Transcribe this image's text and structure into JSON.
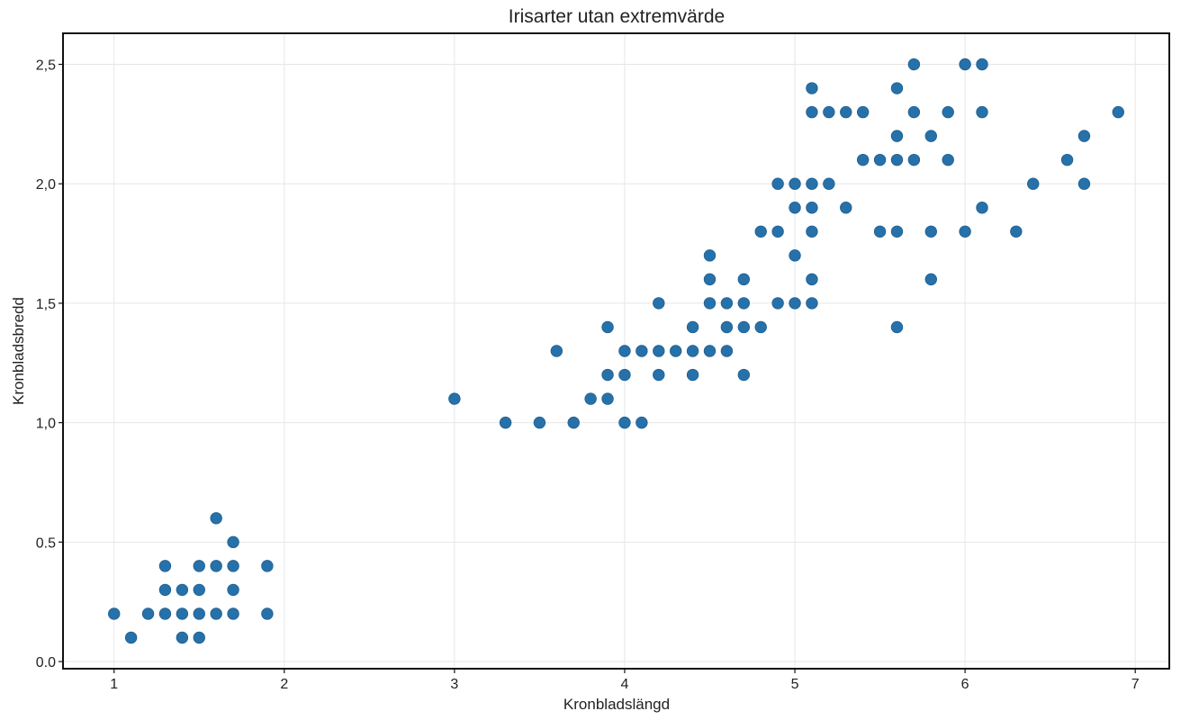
{
  "chart_data": {
    "type": "scatter",
    "title": "Irisarter utan extremvärde",
    "xlabel": "Kronbladslängd",
    "ylabel": "Kronbladsbredd",
    "xlim": [
      0.7,
      7.2
    ],
    "ylim": [
      -0.03,
      2.63
    ],
    "x_ticks": [
      1,
      2,
      3,
      4,
      5,
      6,
      7
    ],
    "x_tick_labels": [
      "1",
      "2",
      "3",
      "4",
      "5",
      "6",
      "7"
    ],
    "y_ticks": [
      0.0,
      0.5,
      1.0,
      1.5,
      2.0,
      2.5
    ],
    "y_tick_labels": [
      "0.0",
      "0.5",
      "1,0",
      "1,5",
      "2,0",
      "2,5"
    ],
    "grid": true,
    "marker_color": "#2771aa",
    "points": [
      [
        1.0,
        0.2
      ],
      [
        1.1,
        0.1
      ],
      [
        1.2,
        0.2
      ],
      [
        1.3,
        0.2
      ],
      [
        1.3,
        0.3
      ],
      [
        1.3,
        0.4
      ],
      [
        1.4,
        0.1
      ],
      [
        1.4,
        0.2
      ],
      [
        1.4,
        0.3
      ],
      [
        1.5,
        0.1
      ],
      [
        1.5,
        0.2
      ],
      [
        1.5,
        0.3
      ],
      [
        1.5,
        0.4
      ],
      [
        1.6,
        0.2
      ],
      [
        1.6,
        0.4
      ],
      [
        1.6,
        0.6
      ],
      [
        1.7,
        0.2
      ],
      [
        1.7,
        0.3
      ],
      [
        1.7,
        0.4
      ],
      [
        1.7,
        0.5
      ],
      [
        1.9,
        0.2
      ],
      [
        1.9,
        0.4
      ],
      [
        3.0,
        1.1
      ],
      [
        3.3,
        1.0
      ],
      [
        3.5,
        1.0
      ],
      [
        3.6,
        1.3
      ],
      [
        3.7,
        1.0
      ],
      [
        3.8,
        1.1
      ],
      [
        3.9,
        1.1
      ],
      [
        3.9,
        1.2
      ],
      [
        3.9,
        1.4
      ],
      [
        4.0,
        1.0
      ],
      [
        4.0,
        1.2
      ],
      [
        4.0,
        1.3
      ],
      [
        4.1,
        1.0
      ],
      [
        4.1,
        1.3
      ],
      [
        4.2,
        1.2
      ],
      [
        4.2,
        1.3
      ],
      [
        4.2,
        1.5
      ],
      [
        4.3,
        1.3
      ],
      [
        4.4,
        1.2
      ],
      [
        4.4,
        1.3
      ],
      [
        4.4,
        1.4
      ],
      [
        4.5,
        1.3
      ],
      [
        4.5,
        1.5
      ],
      [
        4.5,
        1.6
      ],
      [
        4.5,
        1.7
      ],
      [
        4.6,
        1.3
      ],
      [
        4.6,
        1.4
      ],
      [
        4.6,
        1.5
      ],
      [
        4.7,
        1.2
      ],
      [
        4.7,
        1.4
      ],
      [
        4.7,
        1.5
      ],
      [
        4.7,
        1.6
      ],
      [
        4.8,
        1.4
      ],
      [
        4.8,
        1.8
      ],
      [
        4.9,
        1.5
      ],
      [
        4.9,
        1.8
      ],
      [
        4.9,
        2.0
      ],
      [
        5.0,
        1.5
      ],
      [
        5.0,
        1.7
      ],
      [
        5.0,
        1.9
      ],
      [
        5.0,
        2.0
      ],
      [
        5.1,
        1.5
      ],
      [
        5.1,
        1.6
      ],
      [
        5.1,
        1.8
      ],
      [
        5.1,
        1.9
      ],
      [
        5.1,
        2.0
      ],
      [
        5.1,
        2.3
      ],
      [
        5.1,
        2.4
      ],
      [
        5.2,
        2.0
      ],
      [
        5.2,
        2.3
      ],
      [
        5.3,
        1.9
      ],
      [
        5.3,
        2.3
      ],
      [
        5.4,
        2.1
      ],
      [
        5.4,
        2.3
      ],
      [
        5.5,
        1.8
      ],
      [
        5.5,
        2.1
      ],
      [
        5.6,
        1.4
      ],
      [
        5.6,
        1.8
      ],
      [
        5.6,
        2.1
      ],
      [
        5.6,
        2.2
      ],
      [
        5.6,
        2.4
      ],
      [
        5.7,
        2.1
      ],
      [
        5.7,
        2.3
      ],
      [
        5.7,
        2.5
      ],
      [
        5.8,
        1.6
      ],
      [
        5.8,
        1.8
      ],
      [
        5.8,
        2.2
      ],
      [
        5.9,
        2.1
      ],
      [
        5.9,
        2.3
      ],
      [
        6.0,
        1.8
      ],
      [
        6.0,
        2.5
      ],
      [
        6.1,
        1.9
      ],
      [
        6.1,
        2.3
      ],
      [
        6.1,
        2.5
      ],
      [
        6.3,
        1.8
      ],
      [
        6.4,
        2.0
      ],
      [
        6.6,
        2.1
      ],
      [
        6.7,
        2.0
      ],
      [
        6.7,
        2.2
      ],
      [
        6.9,
        2.3
      ]
    ]
  }
}
